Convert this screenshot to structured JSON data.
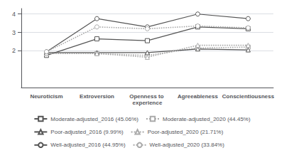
{
  "chart_data": {
    "type": "line",
    "categories": [
      "Neuroticism",
      "Extroversion",
      "Openness to experience",
      "Agreeableness",
      "Conscientiousness"
    ],
    "series": [
      {
        "name": "Moderate-adjusted_2016 (45.06%)",
        "color": "#555555",
        "marker": "square",
        "line_style": "solid",
        "values": [
          1.75,
          2.65,
          2.55,
          3.3,
          3.2
        ]
      },
      {
        "name": "Moderate-adjusted_2020 (44.45%)",
        "color": "#aaaaaa",
        "marker": "square",
        "line_style": "dotted",
        "values": [
          1.85,
          1.85,
          1.75,
          2.15,
          2.2
        ]
      },
      {
        "name": "Poor-adjusted_2016 (9.99%)",
        "color": "#555555",
        "marker": "triangle",
        "line_style": "solid",
        "values": [
          1.9,
          1.9,
          1.9,
          2.1,
          2.05
        ]
      },
      {
        "name": "Poor-adjusted_2020 (21.71%)",
        "color": "#aaaaaa",
        "marker": "triangle",
        "line_style": "dotted",
        "values": [
          1.85,
          1.85,
          1.65,
          2.3,
          2.3
        ]
      },
      {
        "name": "Well-adjusted_2016 (44.95%)",
        "color": "#555555",
        "marker": "circle",
        "line_style": "solid",
        "values": [
          1.95,
          3.75,
          3.3,
          4.0,
          3.75
        ]
      },
      {
        "name": "Well-adjusted_2020 (33.84%)",
        "color": "#aaaaaa",
        "marker": "circle",
        "line_style": "dotted",
        "values": [
          1.95,
          3.3,
          3.2,
          3.35,
          3.25
        ]
      }
    ],
    "ylim": [
      0,
      4.3
    ],
    "yticks": [
      2,
      3,
      4
    ],
    "grid": true,
    "legend": "bottom"
  }
}
